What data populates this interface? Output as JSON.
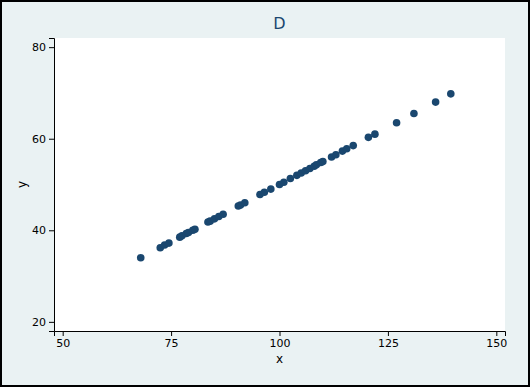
{
  "chart_data": {
    "type": "scatter",
    "title": "D",
    "x_label": "x",
    "y_label": "y",
    "x": [
      68,
      72.5,
      73.5,
      74.5,
      77,
      77.5,
      78.5,
      79,
      80,
      80.5,
      83.5,
      84,
      85,
      86,
      87,
      90.5,
      91,
      92,
      95.5,
      96.5,
      98,
      100,
      101,
      102.5,
      104,
      105,
      106,
      107,
      108,
      108.5,
      109.5,
      110,
      112,
      113,
      114.5,
      115.5,
      117,
      120.5,
      122,
      127,
      131,
      136,
      139.5
    ],
    "values": [
      34,
      36.2,
      36.8,
      37.2,
      38.5,
      38.8,
      39.3,
      39.5,
      40,
      40.2,
      41.8,
      42,
      42.5,
      43,
      43.5,
      45.3,
      45.5,
      46,
      47.8,
      48.3,
      49,
      50,
      50.5,
      51.3,
      52,
      52.5,
      53,
      53.5,
      54,
      54.3,
      54.8,
      55,
      56,
      56.5,
      57.3,
      57.8,
      58.5,
      60.3,
      61,
      63.5,
      65.5,
      68,
      69.8
    ],
    "color": "#1a476f",
    "marker": "circle",
    "xlim": [
      48,
      152
    ],
    "ylim": [
      18,
      82
    ],
    "xticks": [
      50,
      75,
      100,
      125,
      150
    ],
    "yticks": [
      20,
      40,
      60,
      80
    ],
    "grid": false
  }
}
